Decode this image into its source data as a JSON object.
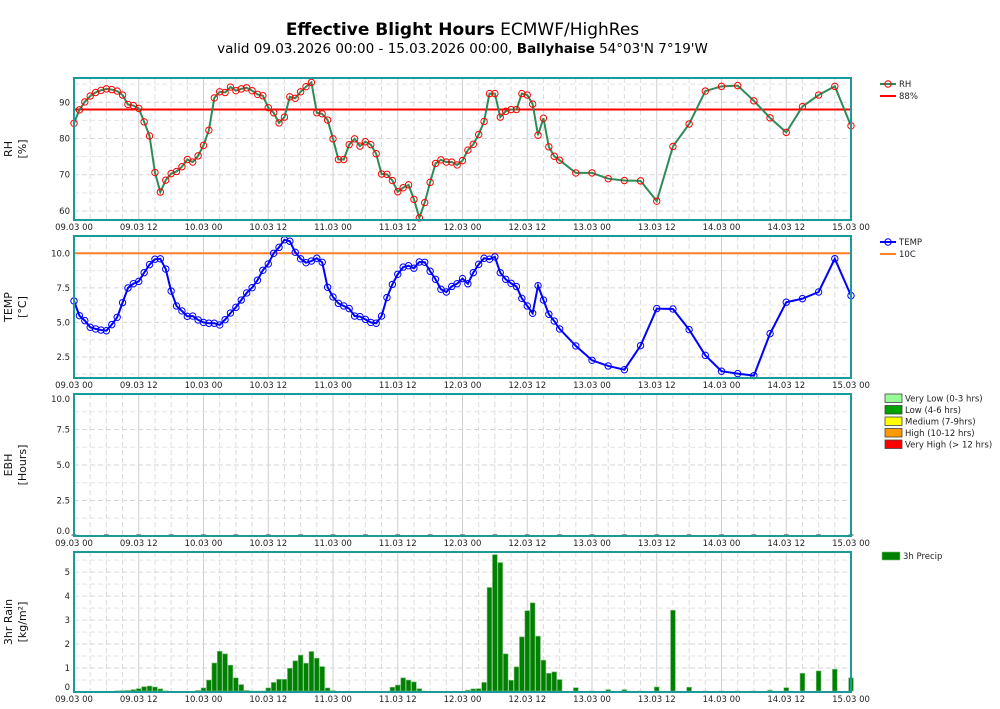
{
  "header": {
    "title_bold": "Effective Blight Hours",
    "title_rest": " ECMWF/HighRes",
    "subtitle_pre": "valid 09.03.2026 00:00 - 15.03.2026 00:00, ",
    "subtitle_place": "Ballyhaise",
    "subtitle_post": " 54°03'N 7°19'W"
  },
  "colors": {
    "frame": "#1a9a9a",
    "rh_line": "#2e8b57",
    "rh_marker": "#ff0000",
    "rh_threshold": "#ff0000",
    "temp_line": "#0000ff",
    "temp_threshold": "#ff7f24",
    "rain_bar": "#008000",
    "grid": "#d8d8d8"
  },
  "x_ticks": [
    "09.03 00",
    "09.03 12",
    "10.03 00",
    "10.03 12",
    "11.03 00",
    "11.03 12",
    "12.03 00",
    "12.03 12",
    "13.03 00",
    "13.03 12",
    "14.03 00",
    "14.03 12",
    "15.03 00"
  ],
  "chart_data": [
    {
      "type": "line",
      "ylabel": [
        "RH",
        "[%]"
      ],
      "xlim": [
        "09.03 00",
        "15.03 00"
      ],
      "ylim": [
        57.5,
        96.7
      ],
      "yticks": [
        "60",
        "70",
        "80",
        "90"
      ],
      "grid": true,
      "legend_placement": "right",
      "series": [
        {
          "name": "RH",
          "marker": "circle",
          "x": [
            "09.03 00",
            "09.03 01",
            "09.03 02",
            "09.03 03",
            "09.03 04",
            "09.03 05",
            "09.03 06",
            "09.03 07",
            "09.03 08",
            "09.03 09",
            "09.03 10",
            "09.03 11",
            "09.03 12",
            "09.03 13",
            "09.03 14",
            "09.03 15",
            "09.03 16",
            "09.03 17",
            "09.03 18",
            "09.03 19",
            "09.03 20",
            "09.03 21",
            "09.03 22",
            "09.03 23",
            "10.03 00",
            "10.03 01",
            "10.03 02",
            "10.03 03",
            "10.03 04",
            "10.03 05",
            "10.03 06",
            "10.03 07",
            "10.03 08",
            "10.03 09",
            "10.03 10",
            "10.03 11",
            "10.03 12",
            "10.03 13",
            "10.03 14",
            "10.03 15",
            "10.03 16",
            "10.03 17",
            "10.03 18",
            "10.03 19",
            "10.03 20",
            "10.03 21",
            "10.03 22",
            "10.03 23",
            "11.03 00",
            "11.03 01",
            "11.03 02",
            "11.03 03",
            "11.03 04",
            "11.03 05",
            "11.03 06",
            "11.03 07",
            "11.03 08",
            "11.03 09",
            "11.03 10",
            "11.03 11",
            "11.03 12",
            "11.03 13",
            "11.03 14",
            "11.03 15",
            "11.03 16",
            "11.03 17",
            "11.03 18",
            "11.03 19",
            "11.03 20",
            "11.03 21",
            "11.03 22",
            "11.03 23",
            "12.03 00",
            "12.03 01",
            "12.03 02",
            "12.03 03",
            "12.03 04",
            "12.03 05",
            "12.03 06",
            "12.03 07",
            "12.03 08",
            "12.03 09",
            "12.03 10",
            "12.03 11",
            "12.03 12",
            "12.03 13",
            "12.03 14",
            "12.03 15",
            "12.03 16",
            "12.03 17",
            "12.03 18",
            "12.03 21",
            "13.03 00",
            "13.03 03",
            "13.03 06",
            "13.03 09",
            "13.03 12",
            "13.03 15",
            "13.03 18",
            "13.03 21",
            "14.03 00",
            "14.03 03",
            "14.03 06",
            "14.03 09",
            "14.03 12",
            "14.03 15",
            "14.03 18",
            "14.03 21",
            "15.03 00"
          ],
          "values": [
            84.2,
            87.9,
            90.1,
            91.7,
            92.7,
            93.3,
            93.7,
            93.5,
            93.1,
            92.0,
            89.4,
            89.1,
            88.3,
            84.6,
            80.7,
            70.6,
            65.2,
            68.5,
            70.3,
            70.9,
            72.2,
            74.2,
            73.5,
            75.2,
            78.1,
            82.3,
            91.2,
            92.9,
            92.7,
            94.2,
            93.2,
            93.7,
            94.0,
            93.2,
            92.2,
            91.8,
            88.5,
            87.1,
            84.3,
            85.9,
            91.5,
            91.1,
            92.9,
            94.3,
            95.5,
            87.1,
            86.8,
            85.1,
            79.9,
            74.2,
            74.2,
            78.3,
            79.9,
            77.9,
            79.1,
            78.3,
            75.8,
            70.2,
            70.1,
            68.4,
            65.3,
            66.4,
            67.2,
            63.2,
            58.1,
            62.3,
            67.9,
            73.1,
            74.1,
            73.5,
            73.5,
            72.7,
            73.9,
            76.8,
            78.4,
            81.1,
            84.7,
            92.4,
            92.4,
            85.9,
            87.5,
            88.0,
            88.0,
            92.4,
            92.0,
            89.5,
            80.9,
            85.6,
            77.7,
            75.1,
            74.0,
            70.5,
            70.5,
            68.9,
            68.4,
            68.3,
            62.7,
            77.8,
            84.0,
            93.1,
            94.4,
            94.6,
            90.4,
            85.7,
            81.7,
            88.8,
            92.0,
            94.4,
            83.5
          ]
        }
      ],
      "threshold": {
        "name": "88%",
        "value": 88
      }
    },
    {
      "type": "line",
      "ylabel": [
        "TEMP",
        "[°C]"
      ],
      "xlim": [
        "09.03 00",
        "15.03 00"
      ],
      "ylim": [
        0.98,
        11.25
      ],
      "yticks": [
        "2.5",
        "5.0",
        "7.5",
        "10.0"
      ],
      "grid": true,
      "legend_placement": "right",
      "series": [
        {
          "name": "TEMP",
          "marker": "circle",
          "x": [
            "09.03 00",
            "09.03 01",
            "09.03 02",
            "09.03 03",
            "09.03 04",
            "09.03 05",
            "09.03 06",
            "09.03 07",
            "09.03 08",
            "09.03 09",
            "09.03 10",
            "09.03 11",
            "09.03 12",
            "09.03 13",
            "09.03 14",
            "09.03 15",
            "09.03 16",
            "09.03 17",
            "09.03 18",
            "09.03 19",
            "09.03 20",
            "09.03 21",
            "09.03 22",
            "09.03 23",
            "10.03 00",
            "10.03 01",
            "10.03 02",
            "10.03 03",
            "10.03 04",
            "10.03 05",
            "10.03 06",
            "10.03 07",
            "10.03 08",
            "10.03 09",
            "10.03 10",
            "10.03 11",
            "10.03 12",
            "10.03 13",
            "10.03 14",
            "10.03 15",
            "10.03 16",
            "10.03 17",
            "10.03 18",
            "10.03 19",
            "10.03 20",
            "10.03 21",
            "10.03 22",
            "10.03 23",
            "11.03 00",
            "11.03 01",
            "11.03 02",
            "11.03 03",
            "11.03 04",
            "11.03 05",
            "11.03 06",
            "11.03 07",
            "11.03 08",
            "11.03 09",
            "11.03 10",
            "11.03 11",
            "11.03 12",
            "11.03 13",
            "11.03 14",
            "11.03 15",
            "11.03 16",
            "11.03 17",
            "11.03 18",
            "11.03 19",
            "11.03 20",
            "11.03 21",
            "11.03 22",
            "11.03 23",
            "12.03 00",
            "12.03 01",
            "12.03 02",
            "12.03 03",
            "12.03 04",
            "12.03 05",
            "12.03 06",
            "12.03 07",
            "12.03 08",
            "12.03 09",
            "12.03 10",
            "12.03 11",
            "12.03 12",
            "12.03 13",
            "12.03 14",
            "12.03 15",
            "12.03 16",
            "12.03 17",
            "12.03 18",
            "12.03 21",
            "13.03 00",
            "13.03 03",
            "13.03 06",
            "13.03 09",
            "13.03 12",
            "13.03 15",
            "13.03 18",
            "13.03 21",
            "14.03 00",
            "14.03 03",
            "14.03 06",
            "14.03 09",
            "14.03 12",
            "14.03 15",
            "14.03 18",
            "14.03 21",
            "15.03 00"
          ],
          "values": [
            6.55,
            5.49,
            5.13,
            4.65,
            4.53,
            4.45,
            4.4,
            4.84,
            5.37,
            6.43,
            7.49,
            7.8,
            7.97,
            8.6,
            9.18,
            9.57,
            9.6,
            8.86,
            7.27,
            6.19,
            5.83,
            5.44,
            5.46,
            5.18,
            5.0,
            4.94,
            4.94,
            4.82,
            5.2,
            5.68,
            6.09,
            6.62,
            7.13,
            7.51,
            8.05,
            8.77,
            9.23,
            10.0,
            10.43,
            10.98,
            10.87,
            10.07,
            9.6,
            9.32,
            9.44,
            9.64,
            9.35,
            7.54,
            6.84,
            6.38,
            6.19,
            6.0,
            5.46,
            5.42,
            5.22,
            5.0,
            4.94,
            5.46,
            6.8,
            7.75,
            8.48,
            9.0,
            9.1,
            8.92,
            9.37,
            9.35,
            8.7,
            8.12,
            7.4,
            7.2,
            7.6,
            7.8,
            8.17,
            7.8,
            8.6,
            9.2,
            9.64,
            9.57,
            9.74,
            8.6,
            8.12,
            7.83,
            7.59,
            6.74,
            6.19,
            5.66,
            7.66,
            6.62,
            5.59,
            5.1,
            4.53,
            3.3,
            2.26,
            1.85,
            1.58,
            3.32,
            6.0,
            5.97,
            4.48,
            2.62,
            1.47,
            1.3,
            1.15,
            4.19,
            6.46,
            6.72,
            7.2,
            9.61,
            6.94
          ]
        }
      ],
      "threshold": {
        "name": "10C",
        "value": 10
      }
    },
    {
      "type": "bar",
      "ylabel": [
        "EBH",
        "[Hours]"
      ],
      "xlim": [
        "09.03 00",
        "15.03 00"
      ],
      "ylim": [
        0,
        10
      ],
      "yticks": [
        "0.0",
        "2.5",
        "5.0",
        "7.5",
        "10.0"
      ],
      "grid": true,
      "legend_placement": "right",
      "legend": [
        {
          "label": "Very Low (0-3 hrs)",
          "color": "#98fb98"
        },
        {
          "label": "Low (4-6 hrs)",
          "color": "#00a000"
        },
        {
          "label": "Medium (7-9hrs)",
          "color": "#ffff00"
        },
        {
          "label": "High (10-12 hrs)",
          "color": "#ff9900"
        },
        {
          "label": "Very High (> 12 hrs)",
          "color": "#ff0000"
        }
      ],
      "series": [
        {
          "x": [
            "09.03 00",
            "09.03 06",
            "09.03 12",
            "09.03 18",
            "10.03 00",
            "10.03 06",
            "10.03 12",
            "10.03 18",
            "11.03 00",
            "11.03 06",
            "11.03 12",
            "11.03 18",
            "12.03 00",
            "12.03 06",
            "12.03 12",
            "12.03 18",
            "13.03 00",
            "13.03 06",
            "13.03 12",
            "13.03 18",
            "14.03 00",
            "14.03 06",
            "14.03 12",
            "14.03 18",
            "15.03 00"
          ],
          "values": [
            0,
            0,
            0,
            0,
            0,
            0,
            0,
            0,
            0,
            0,
            0,
            0,
            0,
            0,
            0,
            0,
            0,
            0,
            0,
            0,
            0,
            0,
            0,
            0,
            0
          ]
        }
      ]
    },
    {
      "type": "bar",
      "ylabel": [
        "3hr Rain",
        "[kg/m²]"
      ],
      "xlim": [
        "09.03 00",
        "15.03 00"
      ],
      "ylim": [
        0,
        5.84
      ],
      "yticks": [
        "0",
        "1",
        "2",
        "3",
        "4",
        "5"
      ],
      "grid": true,
      "legend_placement": "right",
      "series": [
        {
          "name": "3h Precip",
          "x": [
            "09.03 03",
            "09.03 04",
            "09.03 05",
            "09.03 06",
            "09.03 07",
            "09.03 08",
            "09.03 09",
            "09.03 10",
            "09.03 11",
            "09.03 12",
            "09.03 13",
            "09.03 14",
            "09.03 15",
            "09.03 16",
            "09.03 17",
            "09.03 18",
            "09.03 19",
            "09.03 20",
            "09.03 21",
            "09.03 22",
            "09.03 23",
            "10.03 00",
            "10.03 01",
            "10.03 02",
            "10.03 03",
            "10.03 04",
            "10.03 05",
            "10.03 06",
            "10.03 07",
            "10.03 08",
            "10.03 09",
            "10.03 10",
            "10.03 11",
            "10.03 12",
            "10.03 13",
            "10.03 14",
            "10.03 15",
            "10.03 16",
            "10.03 17",
            "10.03 18",
            "10.03 19",
            "10.03 20",
            "10.03 21",
            "10.03 22",
            "10.03 23",
            "11.03 00",
            "11.03 01",
            "11.03 02",
            "11.03 03",
            "11.03 04",
            "11.03 05",
            "11.03 06",
            "11.03 07",
            "11.03 08",
            "11.03 09",
            "11.03 10",
            "11.03 11",
            "11.03 12",
            "11.03 13",
            "11.03 14",
            "11.03 15",
            "11.03 16",
            "11.03 17",
            "11.03 18",
            "11.03 19",
            "11.03 20",
            "11.03 21",
            "11.03 22",
            "11.03 23",
            "12.03 00",
            "12.03 01",
            "12.03 02",
            "12.03 03",
            "12.03 04",
            "12.03 05",
            "12.03 06",
            "12.03 07",
            "12.03 08",
            "12.03 09",
            "12.03 10",
            "12.03 11",
            "12.03 12",
            "12.03 13",
            "12.03 14",
            "12.03 15",
            "12.03 16",
            "12.03 17",
            "12.03 18",
            "12.03 21",
            "13.03 00",
            "13.03 03",
            "13.03 06",
            "13.03 09",
            "13.03 12",
            "13.03 15",
            "13.03 18",
            "13.03 21",
            "14.03 00",
            "14.03 03",
            "14.03 06",
            "14.03 09",
            "14.03 12",
            "14.03 15",
            "14.03 18",
            "14.03 21",
            "15.03 00"
          ],
          "values": [
            0.02,
            0.02,
            0.02,
            0.02,
            0.03,
            0.05,
            0.06,
            0.07,
            0.1,
            0.14,
            0.22,
            0.25,
            0.21,
            0.13,
            0.05,
            0.03,
            0.03,
            0.03,
            0.03,
            0.03,
            0.07,
            0.17,
            0.5,
            1.21,
            1.7,
            1.59,
            1.12,
            0.59,
            0.31,
            0.07,
            0.04,
            0.04,
            0.04,
            0.17,
            0.4,
            0.53,
            0.53,
            0.99,
            1.3,
            1.54,
            1.2,
            1.69,
            1.41,
            1.06,
            0.17,
            0.06,
            0.03,
            0.03,
            0.03,
            0.03,
            0.03,
            0.03,
            0.03,
            0.03,
            0.03,
            0.03,
            0.2,
            0.29,
            0.59,
            0.5,
            0.42,
            0.14,
            0.04,
            0.03,
            0.03,
            0.03,
            0.03,
            0.03,
            0.03,
            0.03,
            0.08,
            0.13,
            0.14,
            0.4,
            4.36,
            5.73,
            5.4,
            1.59,
            0.49,
            1.05,
            2.3,
            3.39,
            3.72,
            2.33,
            1.33,
            0.78,
            0.84,
            0.52,
            0.18,
            0.04,
            0.1,
            0.1,
            0.04,
            0.21,
            3.41,
            0.2,
            0.04,
            0.04,
            0.04,
            0.04,
            0.08,
            0.18,
            0.78,
            0.88,
            0.95,
            0.59
          ]
        }
      ]
    }
  ]
}
